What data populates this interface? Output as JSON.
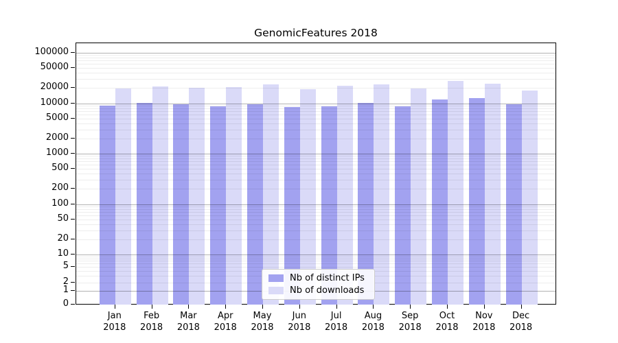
{
  "chart_data": {
    "type": "bar",
    "title": "GenomicFeatures 2018",
    "categories": [
      "Jan 2018",
      "Feb 2018",
      "Mar 2018",
      "Apr 2018",
      "May 2018",
      "Jun 2018",
      "Jul 2018",
      "Aug 2018",
      "Sep 2018",
      "Oct 2018",
      "Nov 2018",
      "Dec 2018"
    ],
    "series": [
      {
        "name": "Nb of distinct IPs",
        "color": "#a2a2f0",
        "values": [
          8950,
          10150,
          9450,
          8700,
          9600,
          8400,
          8700,
          10050,
          8700,
          11800,
          12700,
          9450
        ]
      },
      {
        "name": "Nb of downloads",
        "color": "#dadaf8",
        "values": [
          19600,
          21350,
          20250,
          20700,
          23450,
          19200,
          22250,
          23650,
          19600,
          27700,
          24650,
          18000
        ]
      }
    ],
    "yticks": [
      0,
      1,
      2,
      5,
      10,
      20,
      50,
      100,
      200,
      500,
      1000,
      2000,
      5000,
      10000,
      20000,
      50000,
      100000
    ],
    "yaxis_scale": "log",
    "ylim": [
      0,
      150000
    ],
    "xlabel": "",
    "ylabel": "",
    "grid": "horizontal log major+minor, drawn over bars",
    "legend_position": "lower center",
    "colors": {
      "distinct_ips_bar": "#a2a2f0",
      "downloads_bar": "#dadaf8",
      "axis": "#000000",
      "grid_major": "#b3b3b3",
      "grid_minor": "#ededed",
      "background": "#ffffff"
    }
  }
}
